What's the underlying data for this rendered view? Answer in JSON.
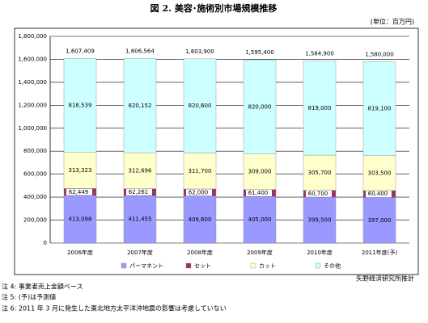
{
  "chart_data": {
    "type": "stacked-bar",
    "title": "図 2.  美容･施術別市場規模推移",
    "unit_label": "(単位：百万円)",
    "categories": [
      "2006年度",
      "2007年度",
      "2008年度",
      "2009年度",
      "2010年度",
      "2011年度(予)"
    ],
    "series": [
      {
        "name": "パーマネント",
        "color": "#9999ff",
        "values": [
          413098,
          411455,
          409600,
          405000,
          399500,
          397000
        ],
        "value_labels": [
          "413,098",
          "411,455",
          "409,600",
          "405,000",
          "399,500",
          "397,000"
        ]
      },
      {
        "name": "セット",
        "color": "#993366",
        "values": [
          62449,
          62261,
          62000,
          61400,
          60700,
          60400
        ],
        "value_labels": [
          "62,449",
          "62,261",
          "62,000",
          "61,400",
          "60,700",
          "60,400"
        ]
      },
      {
        "name": "カット",
        "color": "#ffffcc",
        "values": [
          313323,
          312696,
          311700,
          309000,
          305700,
          303500
        ],
        "value_labels": [
          "313,323",
          "312,696",
          "311,700",
          "309,000",
          "305,700",
          "303,500"
        ]
      },
      {
        "name": "その他",
        "color": "#ccffff",
        "values": [
          818539,
          820152,
          820600,
          820000,
          819000,
          819100
        ],
        "value_labels": [
          "818,539",
          "820,152",
          "820,600",
          "820,000",
          "819,000",
          "819,100"
        ]
      }
    ],
    "totals": [
      1607409,
      1606564,
      1603900,
      1595400,
      1584900,
      1580000
    ],
    "total_labels": [
      "1,607,409",
      "1,606,564",
      "1,603,900",
      "1,595,400",
      "1,584,900",
      "1,580,000"
    ],
    "ylim": [
      0,
      1800000
    ],
    "yticks": [
      {
        "value": 0,
        "label": "0"
      },
      {
        "value": 200000,
        "label": "200,000"
      },
      {
        "value": 400000,
        "label": "400,000"
      },
      {
        "value": 600000,
        "label": "600,000"
      },
      {
        "value": 800000,
        "label": "800,000"
      },
      {
        "value": 1000000,
        "label": "1,000,000"
      },
      {
        "value": 1200000,
        "label": "1,200,000"
      },
      {
        "value": 1400000,
        "label": "1,400,000"
      },
      {
        "value": 1600000,
        "label": "1,600,000"
      },
      {
        "value": 1800000,
        "label": "1,800,000"
      }
    ],
    "grid": true,
    "source": "矢野経済研究所推計",
    "notes": [
      "注 4: 事業者売上金額ベース",
      "注 5: (予)は予測値",
      "注 6:  2011 年 3 月に発生した東北地方太平洋沖地震の影響は考慮していない"
    ]
  }
}
